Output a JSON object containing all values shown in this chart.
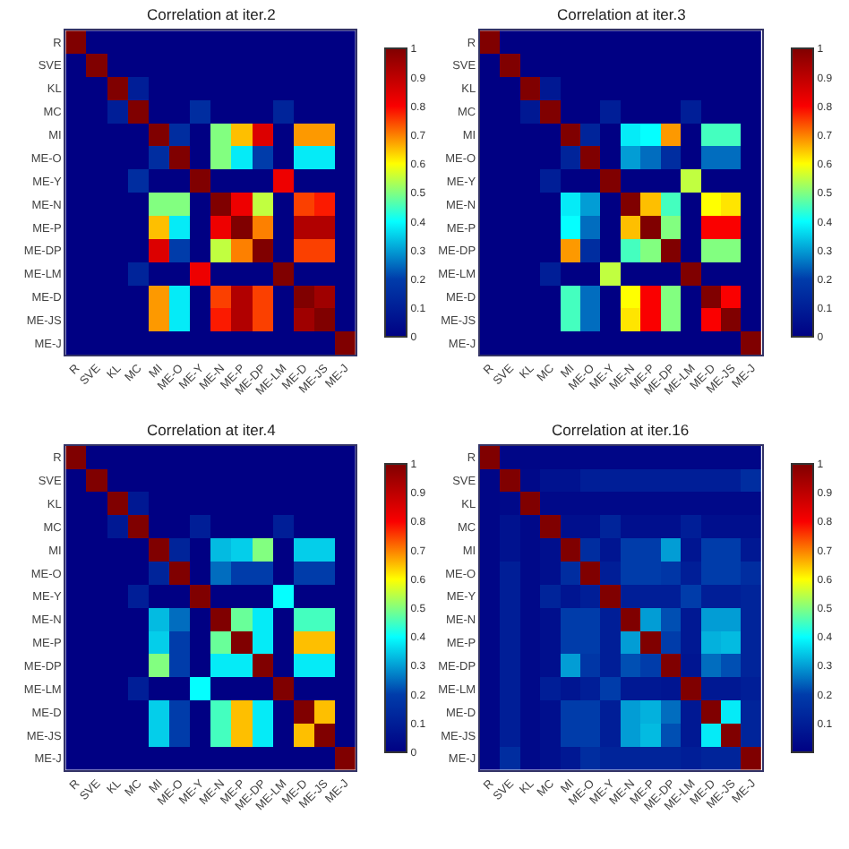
{
  "chart_data": [
    {
      "type": "heatmap",
      "title": "Correlation at iter.2",
      "categories": [
        "R",
        "SVE",
        "KL",
        "MC",
        "MI",
        "ME-O",
        "ME-Y",
        "ME-N",
        "ME-P",
        "ME-DP",
        "ME-LM",
        "ME-D",
        "ME-JS",
        "ME-J"
      ],
      "y_categories": [
        "R",
        "SVE",
        "KL",
        "MC",
        "MI",
        "ME-O",
        "ME-Y",
        "ME-N",
        "ME-P",
        "ME-DP",
        "ME-LM",
        "ME-D",
        "ME-JS",
        "ME-J"
      ],
      "cells": [
        [
          1,
          0,
          0,
          0,
          0,
          0,
          0,
          0,
          0,
          0,
          0,
          0,
          0,
          0
        ],
        [
          0,
          1,
          0,
          0,
          0,
          0,
          0,
          0,
          0,
          0,
          0,
          0,
          0,
          0
        ],
        [
          0,
          0,
          1,
          0.1,
          0,
          0,
          0,
          0,
          0,
          0,
          0,
          0,
          0,
          0
        ],
        [
          0,
          0,
          0.1,
          1,
          0,
          0,
          0.15,
          0,
          0,
          0,
          0.12,
          0,
          0,
          0
        ],
        [
          0,
          0,
          0,
          0,
          1,
          0.15,
          0,
          0.5,
          0.65,
          0.85,
          0,
          0.68,
          0.68,
          0
        ],
        [
          0,
          0,
          0,
          0,
          0.15,
          1,
          0,
          0.5,
          0.38,
          0.2,
          0,
          0.38,
          0.38,
          0
        ],
        [
          0,
          0,
          0,
          0.15,
          0,
          0,
          1,
          0,
          0,
          0,
          0.82,
          0,
          0,
          0
        ],
        [
          0,
          0,
          0,
          0,
          0.5,
          0.5,
          0,
          1,
          0.82,
          0.55,
          0,
          0.75,
          0.78,
          0
        ],
        [
          0,
          0,
          0,
          0,
          0.65,
          0.38,
          0,
          0.82,
          1,
          0.7,
          0,
          0.92,
          0.92,
          0
        ],
        [
          0,
          0,
          0,
          0,
          0.85,
          0.2,
          0,
          0.55,
          0.7,
          1,
          0,
          0.75,
          0.75,
          0
        ],
        [
          0,
          0,
          0,
          0.12,
          0,
          0,
          0.82,
          0,
          0,
          0,
          1,
          0,
          0,
          0
        ],
        [
          0,
          0,
          0,
          0,
          0.68,
          0.38,
          0,
          0.75,
          0.92,
          0.75,
          0,
          1,
          0.95,
          0
        ],
        [
          0,
          0,
          0,
          0,
          0.68,
          0.38,
          0,
          0.78,
          0.92,
          0.75,
          0,
          0.95,
          1,
          0
        ],
        [
          0,
          0,
          0,
          0,
          0,
          0,
          0,
          0,
          0,
          0,
          0,
          0,
          0,
          1
        ]
      ],
      "clim": [
        0,
        1
      ],
      "cticks": [
        0,
        0.1,
        0.2,
        0.3,
        0.4,
        0.5,
        0.6,
        0.7,
        0.8,
        0.9,
        1
      ]
    },
    {
      "type": "heatmap",
      "title": "Correlation at iter.3",
      "categories": [
        "R",
        "SVE",
        "KL",
        "MC",
        "MI",
        "ME-O",
        "ME-Y",
        "ME-N",
        "ME-P",
        "ME-DP",
        "ME-LM",
        "ME-D",
        "ME-JS",
        "ME-J"
      ],
      "y_categories": [
        "R",
        "SVE",
        "KL",
        "MC",
        "MI",
        "ME-O",
        "ME-Y",
        "ME-N",
        "ME-P",
        "ME-DP",
        "ME-LM",
        "ME-D",
        "ME-JS",
        "ME-J"
      ],
      "cells": [
        [
          1,
          0,
          0,
          0,
          0,
          0,
          0,
          0,
          0,
          0,
          0,
          0,
          0,
          0
        ],
        [
          0,
          1,
          0,
          0,
          0,
          0,
          0,
          0,
          0,
          0,
          0,
          0,
          0,
          0
        ],
        [
          0,
          0,
          1,
          0.08,
          0,
          0,
          0,
          0,
          0,
          0,
          0,
          0,
          0,
          0
        ],
        [
          0,
          0,
          0.08,
          1,
          0,
          0,
          0.1,
          0,
          0,
          0,
          0.1,
          0,
          0,
          0
        ],
        [
          0,
          0,
          0,
          0,
          1,
          0.12,
          0,
          0.38,
          0.4,
          0.68,
          0,
          0.45,
          0.45,
          0
        ],
        [
          0,
          0,
          0,
          0,
          0.12,
          1,
          0,
          0.3,
          0.25,
          0.15,
          0,
          0.25,
          0.25,
          0
        ],
        [
          0,
          0,
          0,
          0.1,
          0,
          0,
          1,
          0,
          0,
          0,
          0.55,
          0,
          0,
          0
        ],
        [
          0,
          0,
          0,
          0,
          0.38,
          0.3,
          0,
          1,
          0.65,
          0.45,
          0,
          0.6,
          0.62,
          0
        ],
        [
          0,
          0,
          0,
          0,
          0.4,
          0.25,
          0,
          0.65,
          1,
          0.5,
          0,
          0.8,
          0.8,
          0
        ],
        [
          0,
          0,
          0,
          0,
          0.68,
          0.15,
          0,
          0.45,
          0.5,
          1,
          0,
          0.5,
          0.5,
          0
        ],
        [
          0,
          0,
          0,
          0.1,
          0,
          0,
          0.55,
          0,
          0,
          0,
          1,
          0,
          0,
          0
        ],
        [
          0,
          0,
          0,
          0,
          0.45,
          0.25,
          0,
          0.6,
          0.8,
          0.5,
          0,
          1,
          0.8,
          0
        ],
        [
          0,
          0,
          0,
          0,
          0.45,
          0.25,
          0,
          0.62,
          0.8,
          0.5,
          0,
          0.8,
          1,
          0
        ],
        [
          0,
          0,
          0,
          0,
          0,
          0,
          0,
          0,
          0,
          0,
          0,
          0,
          0,
          1
        ]
      ],
      "clim": [
        0,
        1
      ],
      "cticks": [
        0,
        0.1,
        0.2,
        0.3,
        0.4,
        0.5,
        0.6,
        0.7,
        0.8,
        0.9,
        1
      ]
    },
    {
      "type": "heatmap",
      "title": "Correlation at iter.4",
      "categories": [
        "R",
        "SVE",
        "KL",
        "MC",
        "MI",
        "ME-O",
        "ME-Y",
        "ME-N",
        "ME-P",
        "ME-DP",
        "ME-LM",
        "ME-D",
        "ME-JS",
        "ME-J"
      ],
      "y_categories": [
        "R",
        "SVE",
        "KL",
        "MC",
        "MI",
        "ME-O",
        "ME-Y",
        "ME-N",
        "ME-P",
        "ME-DP",
        "ME-LM",
        "ME-D",
        "ME-JS",
        "ME-J"
      ],
      "cells": [
        [
          1,
          0,
          0,
          0,
          0,
          0,
          0,
          0,
          0,
          0,
          0,
          0,
          0,
          0
        ],
        [
          0,
          1,
          0,
          0,
          0,
          0,
          0,
          0,
          0,
          0,
          0,
          0,
          0,
          0
        ],
        [
          0,
          0,
          1,
          0.08,
          0,
          0,
          0,
          0,
          0,
          0,
          0,
          0,
          0,
          0
        ],
        [
          0,
          0,
          0.08,
          1,
          0,
          0,
          0.1,
          0,
          0,
          0,
          0.1,
          0,
          0,
          0
        ],
        [
          0,
          0,
          0,
          0,
          1,
          0.12,
          0,
          0.33,
          0.35,
          0.5,
          0,
          0.35,
          0.35,
          0
        ],
        [
          0,
          0,
          0,
          0,
          0.12,
          1,
          0,
          0.25,
          0.2,
          0.2,
          0,
          0.2,
          0.2,
          0
        ],
        [
          0,
          0,
          0,
          0.1,
          0,
          0,
          1,
          0,
          0,
          0,
          0.4,
          0,
          0,
          0
        ],
        [
          0,
          0,
          0,
          0,
          0.33,
          0.25,
          0,
          1,
          0.48,
          0.38,
          0,
          0.45,
          0.45,
          0
        ],
        [
          0,
          0,
          0,
          0,
          0.35,
          0.2,
          0,
          0.48,
          1,
          0.38,
          0,
          0.65,
          0.65,
          0
        ],
        [
          0,
          0,
          0,
          0,
          0.5,
          0.2,
          0,
          0.38,
          0.38,
          1,
          0,
          0.38,
          0.38,
          0
        ],
        [
          0,
          0,
          0,
          0.1,
          0,
          0,
          0.4,
          0,
          0,
          0,
          1,
          0,
          0,
          0
        ],
        [
          0,
          0,
          0,
          0,
          0.35,
          0.2,
          0,
          0.45,
          0.65,
          0.38,
          0,
          1,
          0.65,
          0
        ],
        [
          0,
          0,
          0,
          0,
          0.35,
          0.2,
          0,
          0.45,
          0.65,
          0.38,
          0,
          0.65,
          1,
          0
        ],
        [
          0,
          0,
          0,
          0,
          0,
          0,
          0,
          0,
          0,
          0,
          0,
          0,
          0,
          1
        ]
      ],
      "clim": [
        0,
        1
      ],
      "cticks": [
        0,
        0.1,
        0.2,
        0.3,
        0.4,
        0.5,
        0.6,
        0.7,
        0.8,
        0.9,
        1
      ]
    },
    {
      "type": "heatmap",
      "title": "Correlation at iter.16",
      "categories": [
        "R",
        "SVE",
        "KL",
        "MC",
        "MI",
        "ME-O",
        "ME-Y",
        "ME-N",
        "ME-P",
        "ME-DP",
        "ME-LM",
        "ME-D",
        "ME-JS",
        "ME-J"
      ],
      "y_categories": [
        "R",
        "SVE",
        "KL",
        "MC",
        "MI",
        "ME-O",
        "ME-Y",
        "ME-N",
        "ME-P",
        "ME-DP",
        "ME-LM",
        "ME-D",
        "ME-JS",
        "ME-J"
      ],
      "cells": [
        [
          1,
          0.02,
          0.02,
          0.02,
          0.02,
          0.02,
          0.02,
          0.02,
          0.02,
          0.02,
          0.02,
          0.02,
          0.02,
          0.02
        ],
        [
          0.02,
          1,
          0.03,
          0.06,
          0.06,
          0.1,
          0.1,
          0.1,
          0.1,
          0.1,
          0.1,
          0.1,
          0.1,
          0.15
        ],
        [
          0.02,
          0.03,
          1,
          0.03,
          0.03,
          0.03,
          0.03,
          0.03,
          0.03,
          0.03,
          0.03,
          0.03,
          0.03,
          0.03
        ],
        [
          0.02,
          0.06,
          0.03,
          1,
          0.05,
          0.05,
          0.12,
          0.05,
          0.05,
          0.05,
          0.1,
          0.05,
          0.05,
          0.05
        ],
        [
          0.02,
          0.06,
          0.03,
          0.05,
          1,
          0.15,
          0.07,
          0.2,
          0.2,
          0.3,
          0.07,
          0.2,
          0.2,
          0.08
        ],
        [
          0.02,
          0.1,
          0.03,
          0.05,
          0.15,
          1,
          0.1,
          0.2,
          0.2,
          0.18,
          0.1,
          0.2,
          0.2,
          0.15
        ],
        [
          0.02,
          0.1,
          0.03,
          0.12,
          0.07,
          0.1,
          1,
          0.1,
          0.1,
          0.1,
          0.2,
          0.1,
          0.1,
          0.12
        ],
        [
          0.02,
          0.1,
          0.03,
          0.05,
          0.2,
          0.2,
          0.1,
          1,
          0.3,
          0.22,
          0.08,
          0.3,
          0.3,
          0.12
        ],
        [
          0.02,
          0.1,
          0.03,
          0.05,
          0.2,
          0.2,
          0.1,
          0.3,
          1,
          0.2,
          0.08,
          0.32,
          0.33,
          0.12
        ],
        [
          0.02,
          0.1,
          0.03,
          0.05,
          0.3,
          0.18,
          0.1,
          0.22,
          0.2,
          1,
          0.07,
          0.25,
          0.22,
          0.12
        ],
        [
          0.02,
          0.1,
          0.03,
          0.1,
          0.07,
          0.1,
          0.2,
          0.08,
          0.08,
          0.07,
          1,
          0.08,
          0.08,
          0.1
        ],
        [
          0.02,
          0.1,
          0.03,
          0.05,
          0.2,
          0.2,
          0.1,
          0.3,
          0.32,
          0.25,
          0.08,
          1,
          0.38,
          0.12
        ],
        [
          0.02,
          0.1,
          0.03,
          0.05,
          0.2,
          0.2,
          0.1,
          0.3,
          0.33,
          0.22,
          0.08,
          0.38,
          1,
          0.12
        ],
        [
          0.02,
          0.15,
          0.03,
          0.05,
          0.08,
          0.15,
          0.12,
          0.12,
          0.12,
          0.12,
          0.1,
          0.12,
          0.12,
          1
        ]
      ],
      "clim": [
        0,
        1
      ],
      "cticks": [
        0.1,
        0.2,
        0.3,
        0.4,
        0.5,
        0.6,
        0.7,
        0.8,
        0.9,
        1
      ]
    }
  ]
}
